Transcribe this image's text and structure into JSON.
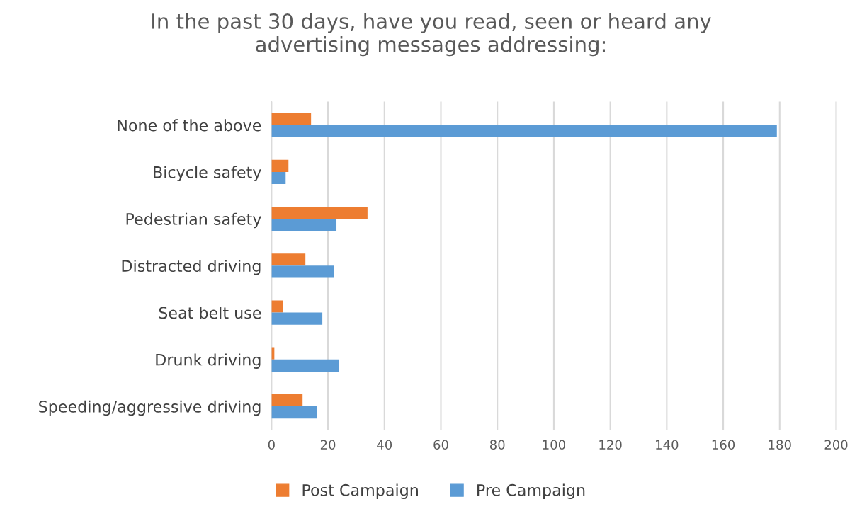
{
  "chart_data": {
    "type": "bar",
    "orientation": "horizontal",
    "title": "In the past 30 days, have you read, seen or heard any\nadvertising messages addressing:",
    "categories": [
      "None of the above",
      "Bicycle safety",
      "Pedestrian safety",
      "Distracted driving",
      "Seat belt use",
      "Drunk driving",
      "Speeding/aggressive driving"
    ],
    "series": [
      {
        "name": "Post Campaign",
        "color": "#ed7d31",
        "values": [
          14,
          6,
          34,
          12,
          4,
          1,
          11
        ]
      },
      {
        "name": "Pre Campaign",
        "color": "#5b9bd5",
        "values": [
          179,
          5,
          23,
          22,
          18,
          24,
          16
        ]
      }
    ],
    "xlim": [
      0,
      200
    ],
    "xticks": [
      0,
      20,
      40,
      60,
      80,
      100,
      120,
      140,
      160,
      180,
      200
    ],
    "grid": "x",
    "legend": "bottom"
  }
}
